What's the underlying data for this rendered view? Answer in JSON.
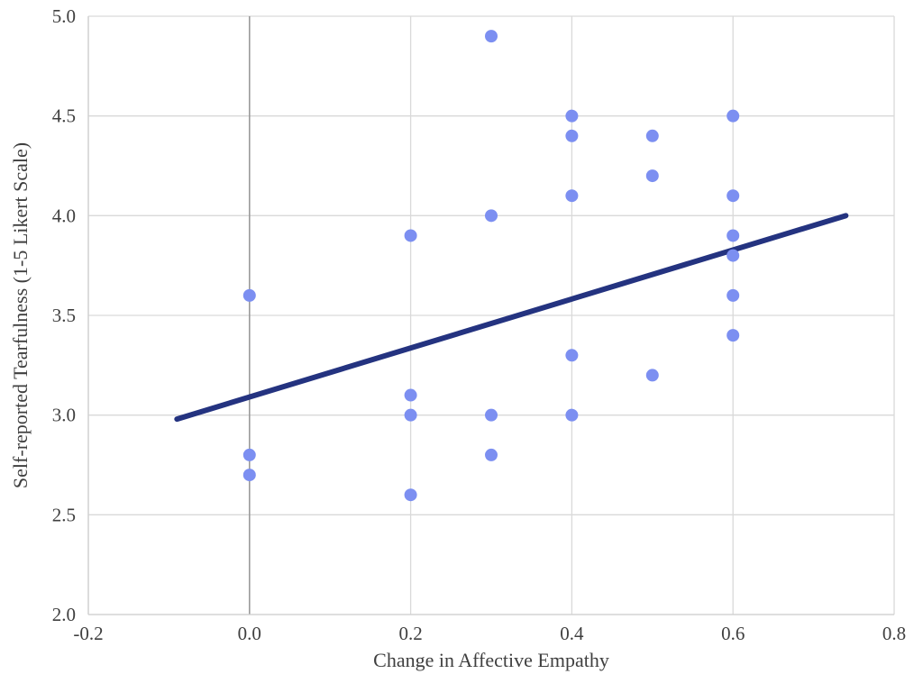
{
  "chart_data": {
    "type": "scatter",
    "title": "",
    "xlabel": "Change in Affective Empathy",
    "ylabel": "Self-reported Tearfulness (1-5 Likert Scale)",
    "xlim": [
      -0.2,
      0.8
    ],
    "ylim": [
      2.0,
      5.0
    ],
    "x_ticks": [
      -0.2,
      0.0,
      0.2,
      0.4,
      0.6,
      0.8
    ],
    "x_tick_labels": [
      "-0.2",
      "0.0",
      "0.2",
      "0.4",
      "0.6",
      "0.8"
    ],
    "y_ticks": [
      2.0,
      2.5,
      3.0,
      3.5,
      4.0,
      4.5,
      5.0
    ],
    "y_tick_labels": [
      "2.0",
      "2.5",
      "3.0",
      "3.5",
      "4.0",
      "4.5",
      "5.0"
    ],
    "grid": true,
    "legend": "none",
    "points": [
      {
        "x": 0.0,
        "y": 3.6
      },
      {
        "x": 0.0,
        "y": 2.8
      },
      {
        "x": 0.0,
        "y": 2.7
      },
      {
        "x": 0.2,
        "y": 3.9
      },
      {
        "x": 0.2,
        "y": 3.1
      },
      {
        "x": 0.2,
        "y": 3.0
      },
      {
        "x": 0.2,
        "y": 2.6
      },
      {
        "x": 0.3,
        "y": 4.9
      },
      {
        "x": 0.3,
        "y": 4.0
      },
      {
        "x": 0.3,
        "y": 3.0
      },
      {
        "x": 0.3,
        "y": 2.8
      },
      {
        "x": 0.4,
        "y": 4.5
      },
      {
        "x": 0.4,
        "y": 4.4
      },
      {
        "x": 0.4,
        "y": 4.1
      },
      {
        "x": 0.4,
        "y": 3.3
      },
      {
        "x": 0.4,
        "y": 3.0
      },
      {
        "x": 0.5,
        "y": 4.4
      },
      {
        "x": 0.5,
        "y": 4.2
      },
      {
        "x": 0.5,
        "y": 3.2
      },
      {
        "x": 0.6,
        "y": 4.5
      },
      {
        "x": 0.6,
        "y": 4.1
      },
      {
        "x": 0.6,
        "y": 3.9
      },
      {
        "x": 0.6,
        "y": 3.8
      },
      {
        "x": 0.6,
        "y": 3.6
      },
      {
        "x": 0.6,
        "y": 3.4
      }
    ],
    "trendline": {
      "x": [
        -0.09,
        0.74
      ],
      "y": [
        2.98,
        4.0
      ]
    },
    "colors": {
      "point": "#7C8FF1",
      "trendline": "#243380",
      "gridline": "#D9D9D9",
      "zero_line": "#9B9B9B",
      "spine": "#D0D0D0",
      "text": "#3F3F3F",
      "background": "#FFFFFF"
    }
  }
}
